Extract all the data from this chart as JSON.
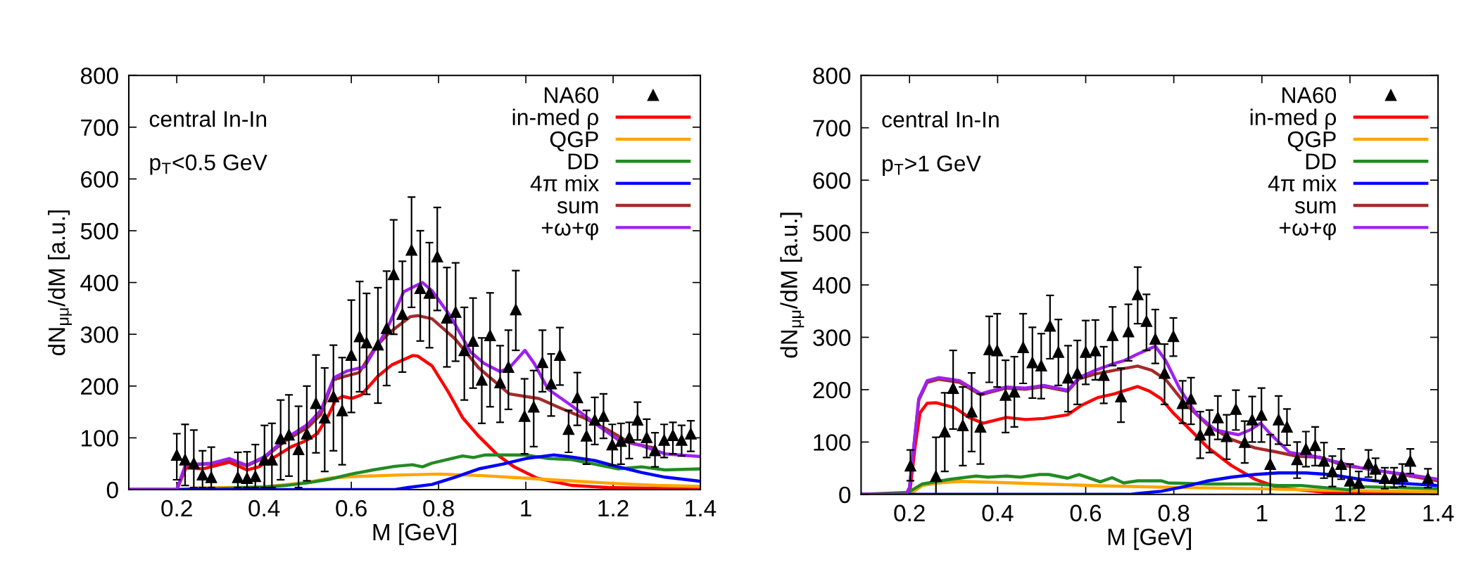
{
  "chart_data": [
    {
      "type": "line",
      "xlabel": "M [GeV]",
      "ylabel": "dN$_{μμ}$/dM [a.u.]",
      "annotations": [
        "central In-In",
        "p$_{T}$<0.5 GeV"
      ],
      "xlim": [
        0.09,
        1.4
      ],
      "xticks": [
        0.2,
        0.4,
        0.6,
        0.8,
        1,
        1.2,
        1.4
      ],
      "ylim": [
        0,
        800
      ],
      "yticks": [
        0,
        100,
        200,
        300,
        400,
        500,
        600,
        700,
        800
      ],
      "legend": "top right",
      "grid": false,
      "series": [
        {
          "name": "NA60",
          "type": "scatter",
          "marker": "triangle",
          "color": "#000000",
          "x": [
            0.2,
            0.219,
            0.239,
            0.259,
            0.279,
            0.34,
            0.361,
            0.38,
            0.401,
            0.418,
            0.438,
            0.457,
            0.479,
            0.498,
            0.519,
            0.539,
            0.559,
            0.579,
            0.6,
            0.619,
            0.635,
            0.661,
            0.681,
            0.697,
            0.717,
            0.738,
            0.758,
            0.779,
            0.797,
            0.819,
            0.839,
            0.859,
            0.879,
            0.899,
            0.918,
            0.941,
            0.96,
            0.977,
            0.997,
            1.018,
            1.038,
            1.058,
            1.078,
            1.098,
            1.118,
            1.139,
            1.158,
            1.178,
            1.198,
            1.218,
            1.237,
            1.256,
            1.277,
            1.296,
            1.317,
            1.337,
            1.357,
            1.378
          ],
          "values": [
            67,
            58,
            51,
            29,
            24,
            24,
            22,
            26,
            58,
            58,
            99,
            106,
            78,
            108,
            167,
            139,
            180,
            153,
            260,
            296,
            284,
            280,
            312,
            416,
            339,
            463,
            389,
            380,
            450,
            332,
            343,
            269,
            287,
            212,
            298,
            207,
            237,
            348,
            142,
            160,
            246,
            205,
            260,
            117,
            178,
            104,
            135,
            142,
            87,
            94,
            101,
            135,
            101,
            76,
            96,
            105,
            96,
            108
          ],
          "errors": [
            [
              19,
              108
            ],
            [
              8,
              126
            ],
            [
              4,
              115
            ],
            [
              4,
              75
            ],
            [
              4,
              82
            ],
            [
              4,
              72
            ],
            [
              4,
              73
            ],
            [
              4,
              87
            ],
            [
              4,
              124
            ],
            [
              4,
              128
            ],
            [
              19,
              173
            ],
            [
              26,
              183
            ],
            [
              4,
              161
            ],
            [
              17,
              200
            ],
            [
              71,
              260
            ],
            [
              35,
              235
            ],
            [
              75,
              279
            ],
            [
              48,
              255
            ],
            [
              149,
              366
            ],
            [
              189,
              402
            ],
            [
              184,
              379
            ],
            [
              167,
              390
            ],
            [
              201,
              422
            ],
            [
              300,
              521
            ],
            [
              227,
              441
            ],
            [
              352,
              565
            ],
            [
              287,
              500
            ],
            [
              274,
              477
            ],
            [
              346,
              545
            ],
            [
              237,
              429
            ],
            [
              248,
              438
            ],
            [
              173,
              352
            ],
            [
              196,
              370
            ],
            [
              128,
              293
            ],
            [
              160,
              380
            ],
            [
              130,
              278
            ],
            [
              155,
              308
            ],
            [
              269,
              423
            ],
            [
              69,
              214
            ],
            [
              83,
              230
            ],
            [
              189,
              308
            ],
            [
              142,
              262
            ],
            [
              202,
              313
            ],
            [
              72,
              153
            ],
            [
              124,
              226
            ],
            [
              49,
              153
            ],
            [
              87,
              178
            ],
            [
              99,
              185
            ],
            [
              47,
              126
            ],
            [
              49,
              128
            ],
            [
              60,
              130
            ],
            [
              96,
              169
            ],
            [
              62,
              136
            ],
            [
              44,
              110
            ],
            [
              62,
              126
            ],
            [
              69,
              130
            ],
            [
              65,
              124
            ],
            [
              74,
              133
            ]
          ]
        },
        {
          "name": "in-med ρ",
          "color": "#ff0000",
          "x": [
            0.09,
            0.2,
            0.221,
            0.259,
            0.32,
            0.361,
            0.388,
            0.463,
            0.495,
            0.522,
            0.548,
            0.564,
            0.58,
            0.601,
            0.623,
            0.661,
            0.693,
            0.741,
            0.752,
            0.785,
            0.822,
            0.855,
            0.892,
            0.935,
            0.973,
            1.026,
            1.106,
            1.187,
            1.4
          ],
          "values": [
            0,
            0,
            42,
            40,
            53,
            38,
            44,
            83,
            94,
            108,
            144,
            173,
            180,
            176,
            183,
            219,
            241,
            259,
            258,
            239,
            189,
            139,
            103,
            67,
            44,
            22,
            8,
            4,
            1
          ]
        },
        {
          "name": "QGP",
          "color": "#ffa500",
          "x": [
            0.09,
            0.2,
            0.25,
            0.4,
            0.5,
            0.55,
            0.6,
            0.7,
            0.8,
            0.9,
            1.0,
            1.1,
            1.2,
            1.3,
            1.4
          ],
          "values": [
            0,
            0,
            3,
            5,
            14,
            22,
            25,
            28,
            30,
            27,
            22,
            17,
            12,
            8,
            6
          ]
        },
        {
          "name": "DD",
          "color": "#228b22",
          "x": [
            0.09,
            0.2,
            0.3,
            0.4,
            0.45,
            0.5,
            0.55,
            0.6,
            0.65,
            0.7,
            0.74,
            0.763,
            0.785,
            0.855,
            0.88,
            0.907,
            1.0,
            1.051,
            1.105,
            1.158,
            1.212,
            1.265,
            1.319,
            1.4
          ],
          "values": [
            0,
            0,
            2,
            5,
            8,
            13,
            20,
            30,
            38,
            45,
            48,
            44,
            51,
            65,
            62,
            67,
            67,
            60,
            58,
            49,
            40,
            44,
            38,
            40
          ]
        },
        {
          "name": "4π mix",
          "color": "#0000ff",
          "x": [
            0.09,
            0.7,
            0.73,
            0.785,
            0.838,
            0.892,
            0.946,
            1.0,
            1.064,
            1.105,
            1.158,
            1.212,
            1.265,
            1.319,
            1.4
          ],
          "values": [
            0,
            0,
            4,
            10,
            24,
            40,
            49,
            60,
            67,
            63,
            56,
            44,
            33,
            24,
            16
          ]
        },
        {
          "name": "sum",
          "color": "#a52a2a",
          "x": [
            0.09,
            0.2,
            0.22,
            0.28,
            0.32,
            0.36,
            0.4,
            0.45,
            0.5,
            0.53,
            0.559,
            0.586,
            0.618,
            0.655,
            0.687,
            0.735,
            0.752,
            0.785,
            0.838,
            0.892,
            0.962,
            0.998,
            1.03,
            1.078,
            1.132,
            1.185,
            1.239,
            1.292
          ],
          "values": [
            0,
            0,
            47,
            50,
            58,
            46,
            61,
            95,
            120,
            145,
            212,
            219,
            226,
            275,
            303,
            334,
            336,
            330,
            291,
            235,
            185,
            180,
            176,
            158,
            139,
            117,
            90,
            81
          ]
        },
        {
          "name": "+ω+φ",
          "color": "#a020f0",
          "x": [
            0.09,
            0.2,
            0.22,
            0.28,
            0.32,
            0.36,
            0.4,
            0.45,
            0.5,
            0.53,
            0.56,
            0.59,
            0.63,
            0.68,
            0.72,
            0.763,
            0.785,
            0.828,
            0.873,
            0.904,
            0.941,
            0.962,
            0.998,
            1.019,
            1.051,
            1.105,
            1.158,
            1.212,
            1.265,
            1.319,
            1.4
          ],
          "values": [
            0,
            0,
            48,
            51,
            60,
            47,
            63,
            99,
            126,
            153,
            216,
            229,
            237,
            307,
            382,
            400,
            384,
            334,
            266,
            244,
            228,
            235,
            269,
            244,
            194,
            162,
            128,
            96,
            85,
            69,
            64
          ]
        }
      ]
    },
    {
      "type": "line",
      "xlabel": "M [GeV]",
      "ylabel": "dN$_{μμ}$/dM [a.u.]",
      "annotations": [
        "central In-In",
        "p$_{T}$>1 GeV"
      ],
      "xlim": [
        0.09,
        1.4
      ],
      "xticks": [
        0.2,
        0.4,
        0.6,
        0.8,
        1,
        1.2,
        1.4
      ],
      "ylim": [
        0,
        800
      ],
      "yticks": [
        0,
        100,
        200,
        300,
        400,
        500,
        600,
        700,
        800
      ],
      "legend": "top right",
      "grid": false,
      "series": [
        {
          "name": "NA60",
          "type": "scatter",
          "marker": "triangle",
          "color": "#000000",
          "x": [
            0.202,
            0.26,
            0.28,
            0.299,
            0.321,
            0.341,
            0.361,
            0.381,
            0.399,
            0.418,
            0.438,
            0.458,
            0.479,
            0.499,
            0.519,
            0.538,
            0.56,
            0.581,
            0.6,
            0.622,
            0.641,
            0.661,
            0.68,
            0.697,
            0.718,
            0.738,
            0.758,
            0.779,
            0.799,
            0.82,
            0.839,
            0.86,
            0.881,
            0.9,
            0.92,
            0.941,
            0.961,
            0.978,
            0.999,
            1.019,
            1.038,
            1.057,
            1.08,
            1.1,
            1.121,
            1.141,
            1.16,
            1.18,
            1.2,
            1.22,
            1.242,
            1.258,
            1.279,
            1.3,
            1.319,
            1.337,
            1.377
          ],
          "values": [
            55,
            35,
            120,
            203,
            132,
            158,
            129,
            277,
            275,
            190,
            196,
            281,
            252,
            246,
            322,
            272,
            223,
            232,
            272,
            275,
            228,
            304,
            187,
            311,
            382,
            331,
            297,
            232,
            302,
            174,
            183,
            114,
            123,
            147,
            111,
            163,
            100,
            143,
            152,
            58,
            143,
            129,
            67,
            87,
            94,
            64,
            44,
            58,
            26,
            22,
            60,
            49,
            31,
            31,
            35,
            64,
            31
          ],
          "errors": [
            [
              26,
              85
            ],
            [
              0,
              109
            ],
            [
              44,
              194
            ],
            [
              125,
              275
            ],
            [
              55,
              205
            ],
            [
              82,
              232
            ],
            [
              58,
              192
            ],
            [
              214,
              340
            ],
            [
              205,
              345
            ],
            [
              118,
              256
            ],
            [
              129,
              263
            ],
            [
              212,
              345
            ],
            [
              184,
              319
            ],
            [
              183,
              307
            ],
            [
              259,
              380
            ],
            [
              208,
              334
            ],
            [
              158,
              284
            ],
            [
              172,
              294
            ],
            [
              210,
              332
            ],
            [
              219,
              333
            ],
            [
              174,
              282
            ],
            [
              246,
              358
            ],
            [
              138,
              241
            ],
            [
              255,
              363
            ],
            [
              326,
              434
            ],
            [
              275,
              382
            ],
            [
              250,
              353
            ],
            [
              172,
              287
            ],
            [
              264,
              337
            ],
            [
              136,
              217
            ],
            [
              134,
              223
            ],
            [
              69,
              158
            ],
            [
              80,
              161
            ],
            [
              105,
              188
            ],
            [
              67,
              152
            ],
            [
              123,
              199
            ],
            [
              60,
              140
            ],
            [
              100,
              187
            ],
            [
              100,
              203
            ],
            [
              0,
              114
            ],
            [
              96,
              188
            ],
            [
              94,
              163
            ],
            [
              31,
              100
            ],
            [
              53,
              120
            ],
            [
              55,
              129
            ],
            [
              31,
              99
            ],
            [
              15,
              73
            ],
            [
              29,
              87
            ],
            [
              0,
              58
            ],
            [
              0,
              44
            ],
            [
              33,
              85
            ],
            [
              26,
              69
            ],
            [
              11,
              51
            ],
            [
              13,
              51
            ],
            [
              15,
              58
            ],
            [
              40,
              87
            ],
            [
              13,
              49
            ]
          ]
        },
        {
          "name": "in-med ρ",
          "color": "#ff0000",
          "x": [
            0.09,
            0.2,
            0.213,
            0.224,
            0.24,
            0.261,
            0.304,
            0.335,
            0.367,
            0.42,
            0.463,
            0.505,
            0.559,
            0.59,
            0.628,
            0.665,
            0.718,
            0.745,
            0.771,
            0.798,
            0.825,
            0.878,
            0.931,
            0.984,
            1.037,
            1.143,
            1.4
          ],
          "values": [
            0,
            0,
            94,
            156,
            174,
            175,
            165,
            147,
            136,
            147,
            143,
            145,
            152,
            170,
            185,
            192,
            206,
            197,
            183,
            156,
            134,
            89,
            55,
            29,
            13,
            4,
            0
          ]
        },
        {
          "name": "QGP",
          "color": "#ffa500",
          "x": [
            0.09,
            0.2,
            0.229,
            0.266,
            0.314,
            0.399,
            0.505,
            0.612,
            0.718,
            0.825,
            0.984,
            1.143,
            1.4
          ],
          "values": [
            0,
            0,
            17,
            22,
            25,
            23,
            20,
            17,
            15,
            13,
            11,
            8,
            5
          ]
        },
        {
          "name": "DD",
          "color": "#228b22",
          "x": [
            0.09,
            0.197,
            0.229,
            0.293,
            0.351,
            0.378,
            0.42,
            0.452,
            0.495,
            0.516,
            0.559,
            0.585,
            0.633,
            0.66,
            0.686,
            0.718,
            0.771,
            0.787,
            0.878,
            0.984,
            1.037,
            1.09,
            1.196,
            1.223,
            1.303,
            1.4
          ],
          "values": [
            0,
            4,
            20,
            29,
            35,
            33,
            35,
            33,
            38,
            38,
            31,
            38,
            24,
            32,
            22,
            26,
            26,
            22,
            20,
            20,
            17,
            17,
            9,
            15,
            13,
            11
          ]
        },
        {
          "name": "4π mix",
          "color": "#0000ff",
          "x": [
            0.09,
            0.7,
            0.718,
            0.771,
            0.825,
            0.878,
            0.931,
            0.984,
            1.037,
            1.1,
            1.153,
            1.223,
            1.303,
            1.4
          ],
          "values": [
            0,
            0,
            2,
            6,
            15,
            26,
            33,
            38,
            41,
            41,
            38,
            29,
            22,
            17
          ]
        },
        {
          "name": "sum",
          "color": "#a52a2a",
          "x": [
            0.09,
            0.192,
            0.2,
            0.221,
            0.24,
            0.266,
            0.314,
            0.341,
            0.362,
            0.378,
            0.42,
            0.463,
            0.505,
            0.559,
            0.585,
            0.622,
            0.665,
            0.718,
            0.75,
            0.782,
            0.825,
            0.878,
            0.931,
            0.984,
            1.027,
            1.08,
            1.133,
            1.186,
            1.239,
            1.303,
            1.4
          ],
          "values": [
            0,
            0,
            13,
            180,
            214,
            220,
            214,
            200,
            190,
            194,
            203,
            201,
            206,
            197,
            221,
            230,
            237,
            245,
            237,
            219,
            174,
            132,
            105,
            89,
            82,
            73,
            71,
            55,
            49,
            40,
            26
          ]
        },
        {
          "name": "+ω+φ",
          "color": "#a020f0",
          "x": [
            0.09,
            0.192,
            0.2,
            0.221,
            0.24,
            0.266,
            0.314,
            0.341,
            0.362,
            0.378,
            0.42,
            0.463,
            0.505,
            0.559,
            0.585,
            0.622,
            0.665,
            0.686,
            0.718,
            0.758,
            0.782,
            0.814,
            0.851,
            0.894,
            0.947,
            0.973,
            0.997,
            1.021,
            1.063,
            1.116,
            1.17,
            1.223,
            1.276,
            1.329,
            1.4
          ],
          "values": [
            0,
            0,
            13,
            183,
            217,
            223,
            217,
            203,
            192,
            196,
            205,
            203,
            208,
            199,
            223,
            237,
            250,
            255,
            268,
            283,
            255,
            201,
            154,
            123,
            114,
            123,
            136,
            114,
            80,
            73,
            62,
            51,
            44,
            38,
            29
          ]
        }
      ]
    }
  ]
}
